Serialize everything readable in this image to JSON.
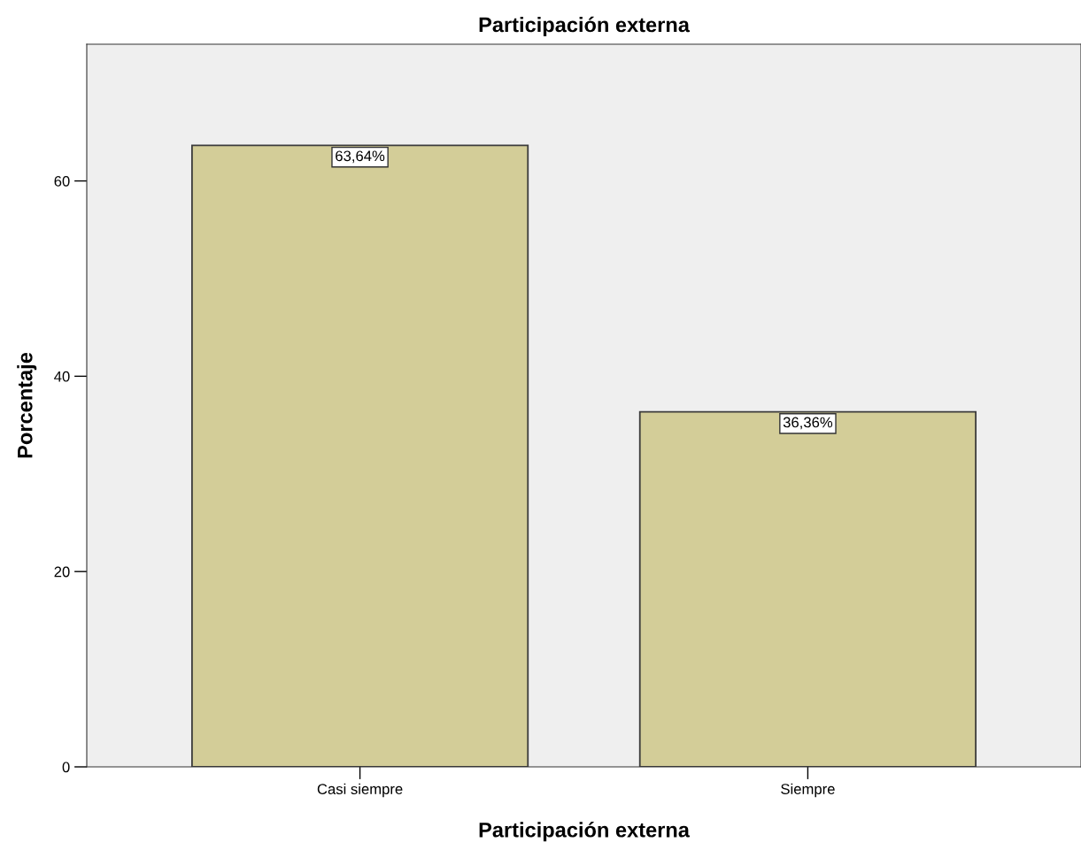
{
  "chart_data": {
    "type": "bar",
    "title": "Participación externa",
    "xlabel": "Participación externa",
    "ylabel": "Porcentaje",
    "categories": [
      "Casi siempre",
      "Siempre"
    ],
    "values": [
      63.64,
      36.36
    ],
    "value_labels": [
      "63,64%",
      "36,36%"
    ],
    "color": "#d3cd98",
    "ylim": [
      0,
      74
    ],
    "yticks": [
      0,
      20,
      40,
      60
    ],
    "grid": false
  }
}
